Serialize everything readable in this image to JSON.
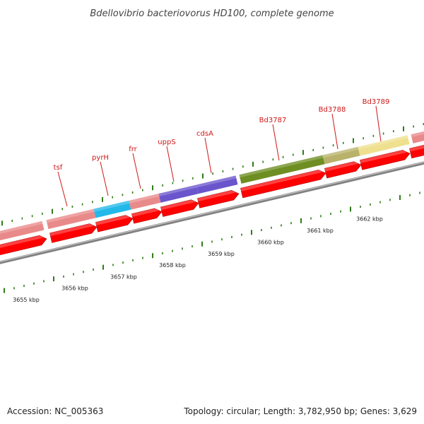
{
  "title": "Bdellovibrio bacteriovorus HD100, complete genome",
  "footer": {
    "accession": "Accession: NC_005363",
    "summary": "Topology: circular; Length: 3,782,950 bp; Genes: 3,629"
  },
  "colors": {
    "backbone": "#808080",
    "strand_arrow": "#ff0000",
    "tick": "#2e7d16",
    "label": "#d01818"
  },
  "genes": [
    {
      "name": "",
      "color": "#e98a8a"
    },
    {
      "name": "tsf",
      "color": "#e98a8a"
    },
    {
      "name": "pyrH",
      "color": "#22b8ea"
    },
    {
      "name": "frr",
      "color": "#e98a8a"
    },
    {
      "name": "uppS",
      "color": "#6a55cc"
    },
    {
      "name": "cdsA",
      "color": "#6a55cc"
    },
    {
      "name": "Bd3787",
      "color": "#6e8e22"
    },
    {
      "name": "Bd3788",
      "color": "#b8b26a"
    },
    {
      "name": "Bd3789",
      "color": "#eee08e"
    },
    {
      "name": "",
      "color": "#e98a8a"
    }
  ],
  "ruler": [
    "3655 kbp",
    "3656 kbp",
    "3657 kbp",
    "3658 kbp",
    "3659 kbp",
    "3660 kbp",
    "3661 kbp",
    "3662 kbp"
  ]
}
